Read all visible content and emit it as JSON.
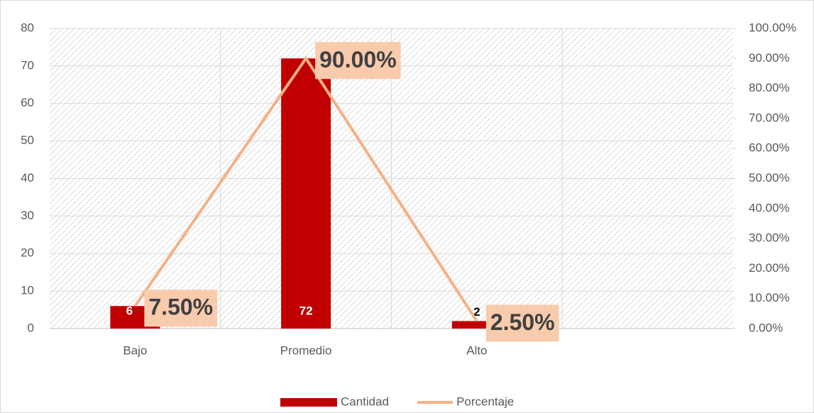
{
  "chart_data": {
    "type": "bar",
    "categories": [
      "Bajo",
      "Promedio",
      "Alto",
      null
    ],
    "series": [
      {
        "name": "Cantidad",
        "type": "bar",
        "color": "#c00000",
        "values": [
          6,
          72,
          2,
          null
        ]
      },
      {
        "name": "Porcentaje",
        "type": "line",
        "axis": "y2",
        "color": "#f4b183",
        "values": [
          7.5,
          90,
          2.5,
          null
        ],
        "value_labels": [
          "7.50%",
          "90.00%",
          "2.50%",
          null
        ]
      }
    ],
    "ylim": [
      0,
      80
    ],
    "yticks": [
      0,
      10,
      20,
      30,
      40,
      50,
      60,
      70,
      80
    ],
    "y2lim": [
      0,
      100
    ],
    "y2ticks": [
      {
        "value": 0,
        "label": "0.00%"
      },
      {
        "value": 10,
        "label": "10.00%"
      },
      {
        "value": 20,
        "label": "20.00%"
      },
      {
        "value": 30,
        "label": "30.00%"
      },
      {
        "value": 40,
        "label": "40.00%"
      },
      {
        "value": 50,
        "label": "50.00%"
      },
      {
        "value": 60,
        "label": "60.00%"
      },
      {
        "value": 70,
        "label": "70.00%"
      },
      {
        "value": 80,
        "label": "80.00%"
      },
      {
        "value": 90,
        "label": "90.00%"
      },
      {
        "value": 100,
        "label": "100.00%"
      }
    ],
    "grid": true,
    "legend": "bottom"
  }
}
